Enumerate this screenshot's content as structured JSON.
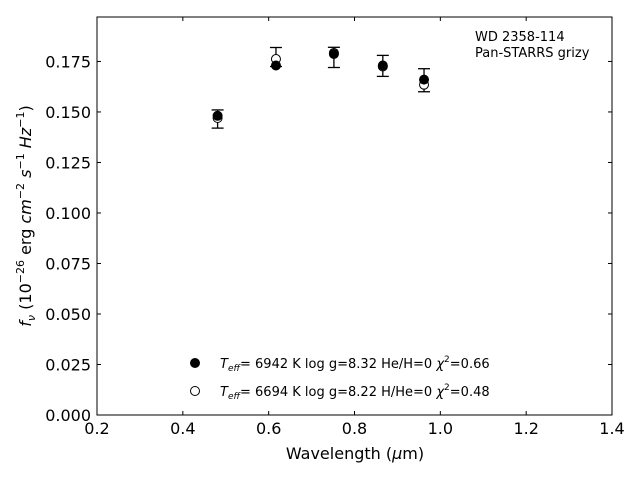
{
  "chart_data": {
    "type": "scatter",
    "title": "",
    "xlabel": "Wavelength (μm)",
    "ylabel": "f_ν (10^-26 erg cm^-2 s^-1 Hz^-1)",
    "xlim": [
      0.2,
      1.4
    ],
    "ylim": [
      0.0,
      0.197
    ],
    "xticks": [
      "0.2",
      "0.4",
      "0.6",
      "0.8",
      "1.0",
      "1.2",
      "1.4"
    ],
    "yticks": [
      "0.000",
      "0.025",
      "0.050",
      "0.075",
      "0.100",
      "0.125",
      "0.150",
      "0.175"
    ],
    "annotation": [
      "WD 2358-114",
      "Pan-STARRS grizy"
    ],
    "observed": {
      "x": [
        0.481,
        0.617,
        0.752,
        0.866,
        0.962
      ],
      "y": [
        0.1465,
        0.1772,
        0.177,
        0.1728,
        0.1657
      ],
      "err": [
        0.0045,
        0.0047,
        0.005,
        0.0052,
        0.0057
      ]
    },
    "series": [
      {
        "name": "T_eff= 6942 K  log g=8.32  He/H=0  χ2=0.66",
        "marker": "filled-circle",
        "x": [
          0.481,
          0.617,
          0.752,
          0.866,
          0.962
        ],
        "y": [
          0.1481,
          0.173,
          0.1787,
          0.173,
          0.166
        ]
      },
      {
        "name": "T_eff= 6694 K  log g=8.22  H/He=0  χ2=0.48",
        "marker": "open-circle",
        "x": [
          0.481,
          0.617,
          0.752,
          0.866,
          0.962
        ],
        "y": [
          0.147,
          0.1762,
          0.1792,
          0.1725,
          0.1635
        ]
      }
    ],
    "legend": [
      {
        "marker": "filled-circle",
        "teff": "6942 K",
        "logg": "log g=8.32",
        "comp": "He/H=0",
        "chi2": "=0.66"
      },
      {
        "marker": "open-circle",
        "teff": "6694 K",
        "logg": "log g=8.22",
        "comp": "H/He=0",
        "chi2": "=0.48"
      }
    ],
    "legend_location": "lower-center",
    "grid": false
  }
}
